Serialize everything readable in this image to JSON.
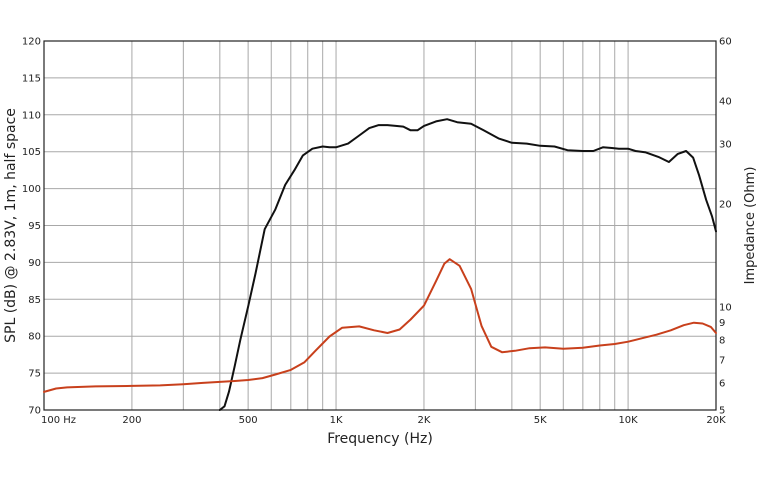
{
  "chart_data": {
    "type": "line",
    "title": "",
    "xlabel": "Frequency (Hz)",
    "ylabel": "SPL (dB) @ 2.83V, 1m, half space",
    "y2label": "Impedance (Ohm)",
    "x_scale": "log",
    "xlim": [
      100,
      20000
    ],
    "ylim": [
      70,
      120
    ],
    "y2_scale": "log",
    "y2lim": [
      5,
      60
    ],
    "grid": true,
    "legend": "none",
    "x_tick_labels": [
      {
        "value": 100,
        "label": "100  Hz"
      },
      {
        "value": 200,
        "label": "200"
      },
      {
        "value": 500,
        "label": "500"
      },
      {
        "value": 1000,
        "label": "1K"
      },
      {
        "value": 2000,
        "label": "2K"
      },
      {
        "value": 5000,
        "label": "5K"
      },
      {
        "value": 10000,
        "label": "10K"
      },
      {
        "value": 20000,
        "label": "20K"
      }
    ],
    "y_ticks": [
      70,
      75,
      80,
      85,
      90,
      95,
      100,
      105,
      110,
      115,
      120
    ],
    "y2_ticks": [
      5,
      6,
      7,
      8,
      9,
      10,
      20,
      30,
      40,
      60
    ],
    "series": [
      {
        "axis": "left",
        "color": "#111111",
        "points": [
          [
            400,
            70.0
          ],
          [
            415,
            70.5
          ],
          [
            430,
            72.5
          ],
          [
            450,
            76.0
          ],
          [
            470,
            79.5
          ],
          [
            500,
            84.0
          ],
          [
            530,
            88.5
          ],
          [
            570,
            94.5
          ],
          [
            620,
            97.2
          ],
          [
            670,
            100.5
          ],
          [
            720,
            102.5
          ],
          [
            770,
            104.5
          ],
          [
            830,
            105.4
          ],
          [
            900,
            105.7
          ],
          [
            950,
            105.6
          ],
          [
            1000,
            105.6
          ],
          [
            1100,
            106.1
          ],
          [
            1200,
            107.2
          ],
          [
            1300,
            108.2
          ],
          [
            1400,
            108.6
          ],
          [
            1500,
            108.6
          ],
          [
            1600,
            108.5
          ],
          [
            1700,
            108.4
          ],
          [
            1800,
            107.9
          ],
          [
            1900,
            107.9
          ],
          [
            2000,
            108.5
          ],
          [
            2200,
            109.1
          ],
          [
            2400,
            109.4
          ],
          [
            2600,
            109.0
          ],
          [
            2900,
            108.8
          ],
          [
            3200,
            107.9
          ],
          [
            3600,
            106.8
          ],
          [
            4000,
            106.2
          ],
          [
            4500,
            106.1
          ],
          [
            5000,
            105.8
          ],
          [
            5600,
            105.7
          ],
          [
            6200,
            105.2
          ],
          [
            7000,
            105.1
          ],
          [
            7600,
            105.1
          ],
          [
            8200,
            105.6
          ],
          [
            8800,
            105.5
          ],
          [
            9300,
            105.4
          ],
          [
            10000,
            105.4
          ],
          [
            10600,
            105.1
          ],
          [
            11500,
            104.9
          ],
          [
            12700,
            104.3
          ],
          [
            13800,
            103.6
          ],
          [
            14800,
            104.7
          ],
          [
            15800,
            105.1
          ],
          [
            16700,
            104.2
          ],
          [
            17500,
            101.8
          ],
          [
            18500,
            98.5
          ],
          [
            19400,
            96.2
          ],
          [
            20000,
            94.2
          ]
        ]
      },
      {
        "axis": "right",
        "color": "#c8401c",
        "points": [
          [
            100,
            5.65
          ],
          [
            110,
            5.78
          ],
          [
            120,
            5.82
          ],
          [
            150,
            5.86
          ],
          [
            200,
            5.88
          ],
          [
            250,
            5.9
          ],
          [
            300,
            5.95
          ],
          [
            350,
            6.0
          ],
          [
            400,
            6.04
          ],
          [
            450,
            6.08
          ],
          [
            500,
            6.12
          ],
          [
            560,
            6.2
          ],
          [
            620,
            6.35
          ],
          [
            700,
            6.55
          ],
          [
            780,
            6.9
          ],
          [
            850,
            7.45
          ],
          [
            950,
            8.2
          ],
          [
            1050,
            8.7
          ],
          [
            1200,
            8.78
          ],
          [
            1350,
            8.55
          ],
          [
            1500,
            8.4
          ],
          [
            1650,
            8.6
          ],
          [
            1800,
            9.2
          ],
          [
            2000,
            10.1
          ],
          [
            2200,
            11.9
          ],
          [
            2350,
            13.4
          ],
          [
            2450,
            13.8
          ],
          [
            2650,
            13.2
          ],
          [
            2900,
            11.3
          ],
          [
            3150,
            8.8
          ],
          [
            3400,
            7.65
          ],
          [
            3700,
            7.38
          ],
          [
            4100,
            7.45
          ],
          [
            4600,
            7.58
          ],
          [
            5200,
            7.62
          ],
          [
            6000,
            7.55
          ],
          [
            7000,
            7.6
          ],
          [
            8000,
            7.72
          ],
          [
            9000,
            7.8
          ],
          [
            10000,
            7.92
          ],
          [
            11000,
            8.08
          ],
          [
            12500,
            8.3
          ],
          [
            14000,
            8.55
          ],
          [
            15500,
            8.85
          ],
          [
            16800,
            9.0
          ],
          [
            18000,
            8.95
          ],
          [
            19200,
            8.75
          ],
          [
            20000,
            8.4
          ]
        ]
      }
    ]
  }
}
